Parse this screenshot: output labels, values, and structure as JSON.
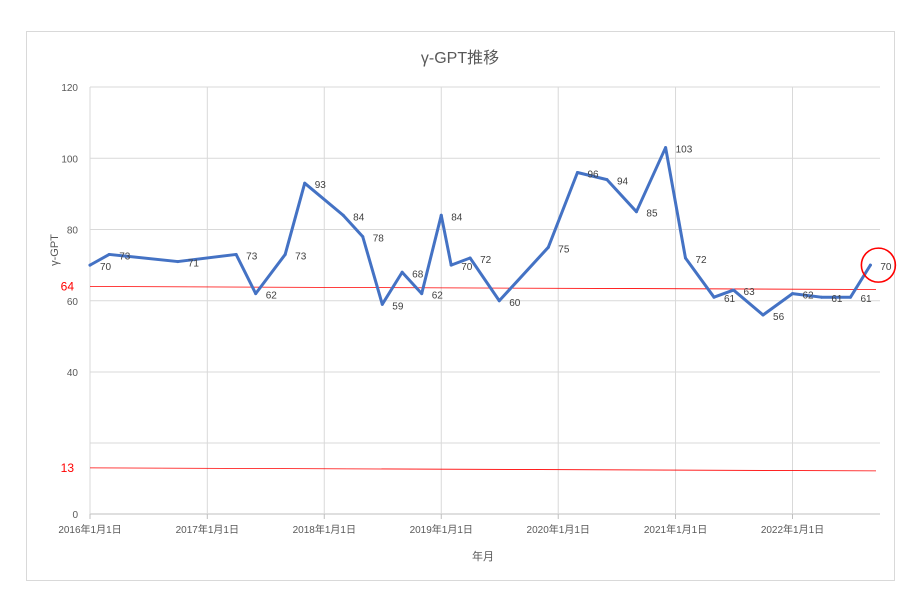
{
  "chart_data": {
    "type": "line",
    "title": "γ-GPT推移",
    "xlabel": "年月",
    "ylabel": "γ-GPT",
    "ylim": [
      0,
      120
    ],
    "y_ticks": [
      0,
      40,
      60,
      80,
      100,
      120
    ],
    "x_ticks": [
      "2016年1月1日",
      "2017年1月1日",
      "2018年1月1日",
      "2019年1月1日",
      "2020年1月1日",
      "2021年1月1日",
      "2022年1月1日"
    ],
    "grid": true,
    "axis_break": true,
    "series": [
      {
        "color": "#4472c4",
        "points": [
          {
            "x": "2016-01-01",
            "y": 70
          },
          {
            "x": "2016-03-01",
            "y": 73
          },
          {
            "x": "2016-10-01",
            "y": 71
          },
          {
            "x": "2017-04-01",
            "y": 73
          },
          {
            "x": "2017-06-01",
            "y": 62
          },
          {
            "x": "2017-09-01",
            "y": 73
          },
          {
            "x": "2017-11-01",
            "y": 93
          },
          {
            "x": "2018-03-01",
            "y": 84
          },
          {
            "x": "2018-05-01",
            "y": 78
          },
          {
            "x": "2018-07-01",
            "y": 59
          },
          {
            "x": "2018-09-01",
            "y": 68
          },
          {
            "x": "2018-11-01",
            "y": 62
          },
          {
            "x": "2019-01-01",
            "y": 84
          },
          {
            "x": "2019-02-01",
            "y": 70
          },
          {
            "x": "2019-04-01",
            "y": 72
          },
          {
            "x": "2019-07-01",
            "y": 60
          },
          {
            "x": "2019-12-01",
            "y": 75
          },
          {
            "x": "2020-03-01",
            "y": 96
          },
          {
            "x": "2020-06-01",
            "y": 94
          },
          {
            "x": "2020-09-01",
            "y": 85
          },
          {
            "x": "2020-12-01",
            "y": 103
          },
          {
            "x": "2021-02-01",
            "y": 72
          },
          {
            "x": "2021-05-01",
            "y": 61
          },
          {
            "x": "2021-07-01",
            "y": 63
          },
          {
            "x": "2021-10-01",
            "y": 56
          },
          {
            "x": "2022-01-01",
            "y": 62
          },
          {
            "x": "2022-04-01",
            "y": 61
          },
          {
            "x": "2022-07-01",
            "y": 61
          },
          {
            "x": "2022-09-01",
            "y": 70
          }
        ]
      }
    ],
    "reference_lines": [
      {
        "value": 64,
        "label": "64",
        "color": "#ff0000"
      },
      {
        "value": 13,
        "label": "13",
        "color": "#ff0000"
      }
    ],
    "highlight": {
      "x": "2022-09-01",
      "y": 70,
      "color": "#ff0000"
    }
  }
}
